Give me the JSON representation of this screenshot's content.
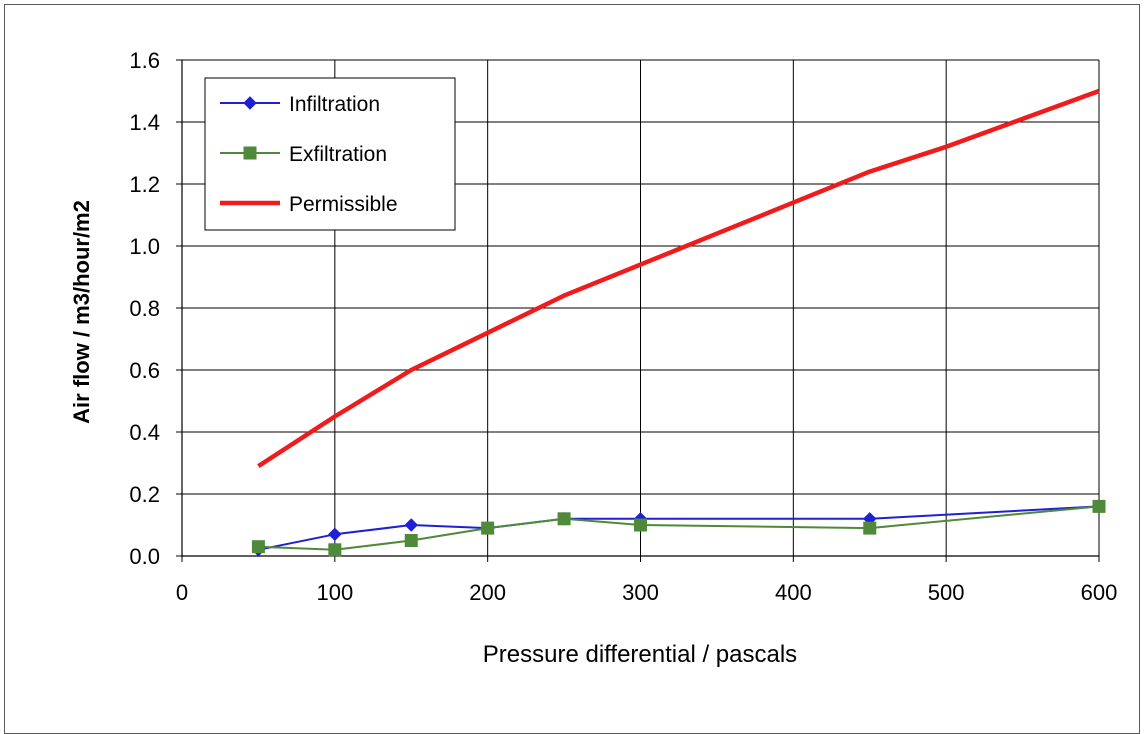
{
  "chart_data": {
    "type": "line",
    "title": "",
    "xlabel": "Pressure differential / pascals",
    "ylabel": "Air flow / m3/hour/m2",
    "xlim": [
      0,
      600
    ],
    "ylim": [
      0,
      1.6
    ],
    "xticks": [
      "0",
      "100",
      "200",
      "300",
      "400",
      "500",
      "600"
    ],
    "yticks": [
      "0.0",
      "0.2",
      "0.4",
      "0.6",
      "0.8",
      "1.0",
      "1.2",
      "1.4",
      "1.6"
    ],
    "grid": true,
    "legend_position": "top-left",
    "series": [
      {
        "name": "Infiltration",
        "color": "#1f1fd6",
        "marker": "diamond",
        "x": [
          50,
          100,
          150,
          200,
          250,
          300,
          450,
          600
        ],
        "y": [
          0.02,
          0.07,
          0.1,
          0.09,
          0.12,
          0.12,
          0.12,
          0.16
        ]
      },
      {
        "name": "Exfiltration",
        "color": "#4e8a3a",
        "marker": "square",
        "x": [
          50,
          100,
          150,
          200,
          250,
          300,
          450,
          600
        ],
        "y": [
          0.03,
          0.02,
          0.05,
          0.09,
          0.12,
          0.1,
          0.09,
          0.16
        ]
      },
      {
        "name": "Permissible",
        "color": "#ee1c1c",
        "marker": "none",
        "x": [
          50,
          100,
          150,
          200,
          250,
          300,
          350,
          400,
          450,
          500,
          550,
          600
        ],
        "y": [
          0.29,
          0.45,
          0.6,
          0.72,
          0.84,
          0.94,
          1.04,
          1.14,
          1.24,
          1.32,
          1.41,
          1.5
        ]
      }
    ]
  }
}
